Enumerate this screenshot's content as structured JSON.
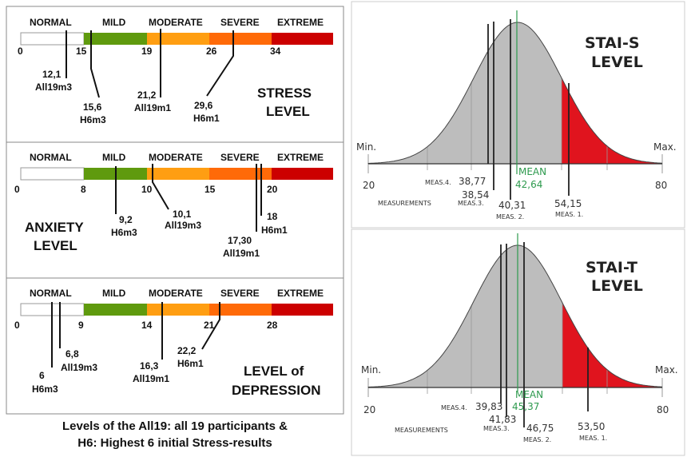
{
  "colors": {
    "normal": "#ffffff",
    "mild": "#5f9a0e",
    "moderate": "#ff9e12",
    "severe": "#ff6a08",
    "extreme": "#cc0000",
    "curve_fill": "#bdbdbd",
    "tail_fill": "#e0141e",
    "mean_line": "#2e9a4e"
  },
  "categories": [
    "NORMAL",
    "MILD",
    "MODERATE",
    "SEVERE",
    "EXTREME"
  ],
  "stress": {
    "title": [
      "STRESS",
      "LEVEL"
    ],
    "ticks": [
      "0",
      "15",
      "19",
      "26",
      "34"
    ],
    "markers": [
      {
        "value": "12,1",
        "group": "All19m3"
      },
      {
        "value": "15,6",
        "group": "H6m3"
      },
      {
        "value": "21,2",
        "group": "All19m1"
      },
      {
        "value": "29,6",
        "group": "H6m1"
      }
    ]
  },
  "anxiety": {
    "title": [
      "ANXIETY",
      "LEVEL"
    ],
    "ticks": [
      "0",
      "8",
      "10",
      "15",
      "20"
    ],
    "markers": [
      {
        "value": "9,2",
        "group": "H6m3"
      },
      {
        "value": "10,1",
        "group": "All19m3"
      },
      {
        "value": "17,30",
        "group": "All19m1"
      },
      {
        "value": "18",
        "group": "H6m1"
      }
    ]
  },
  "depression": {
    "title": [
      "LEVEL of",
      "DEPRESSION"
    ],
    "ticks": [
      "0",
      "9",
      "14",
      "21",
      "28"
    ],
    "markers": [
      {
        "value": "6",
        "group": "H6m3"
      },
      {
        "value": "6,8",
        "group": "All19m3"
      },
      {
        "value": "16,3",
        "group": "All19m1"
      },
      {
        "value": "22,2",
        "group": "H6m1"
      }
    ]
  },
  "caption": [
    "Levels of the All19: all 19 participants &",
    "H6: Highest 6 initial Stress-results"
  ],
  "stai_s": {
    "title": [
      "STAI-S",
      "LEVEL"
    ],
    "min_label": "Min.",
    "max_label": "Max.",
    "min": "20",
    "max": "80",
    "measurements_label": "MEASUREMENTS",
    "mean_label": "MEAN",
    "mean": "42,64",
    "meas": [
      {
        "label": "MEAS. 1.",
        "value": "54,15"
      },
      {
        "label": "MEAS. 2.",
        "value": "40,31"
      },
      {
        "label": "MEAS.3.",
        "value": "38,54"
      },
      {
        "label": "MEAS.4.",
        "value": "38,77"
      }
    ]
  },
  "stai_t": {
    "title": [
      "STAI-T",
      "LEVEL"
    ],
    "min_label": "Min.",
    "max_label": "Max.",
    "min": "20",
    "max": "80",
    "measurements_label": "MEASUREMENTS",
    "mean_label": "MEAN",
    "mean": "45,37",
    "meas": [
      {
        "label": "MEAS. 1.",
        "value": "53,50"
      },
      {
        "label": "MEAS. 2.",
        "value": "46,75"
      },
      {
        "label": "MEAS.3.",
        "value": "41,83"
      },
      {
        "label": "MEAS.4.",
        "value": "39,83"
      }
    ]
  }
}
